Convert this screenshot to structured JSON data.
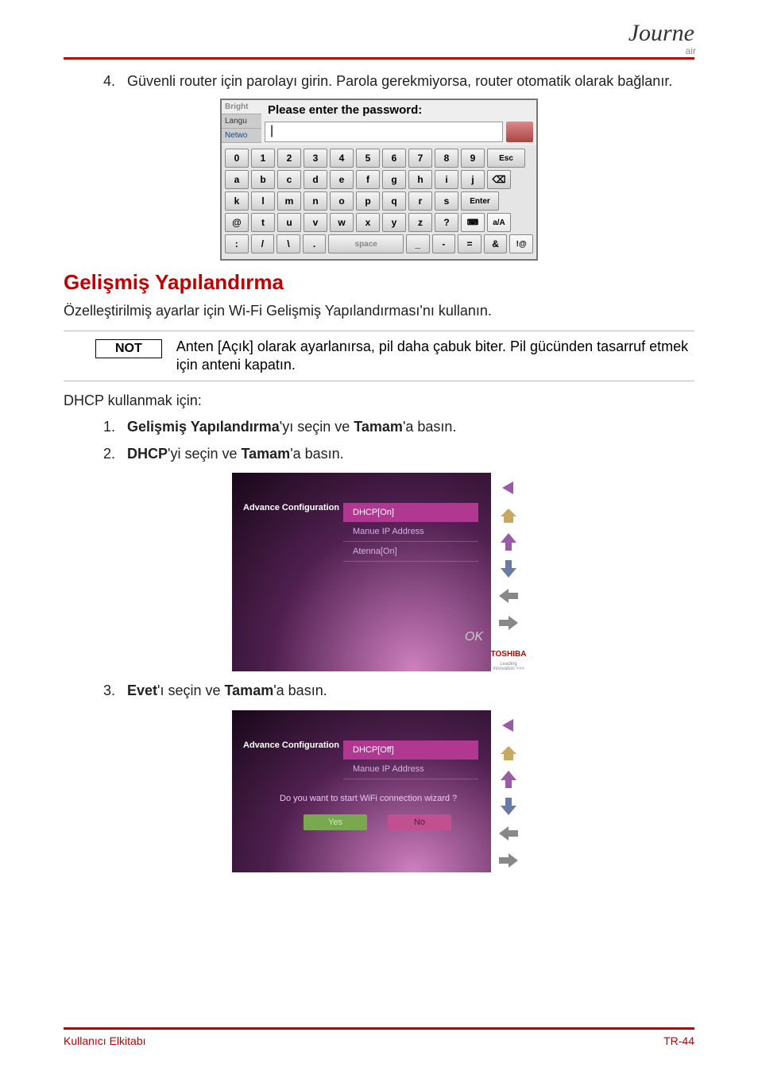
{
  "branding": {
    "logo_script": "Journe",
    "logo_sub": "air"
  },
  "step4": {
    "num": "4.",
    "text": "Güvenli router için parolayı girin. Parola gerekmiyorsa, router otomatik olarak bağlanır."
  },
  "keyboard": {
    "tabs": [
      "Bright",
      "Langu",
      "Netwo"
    ],
    "prompt": "Please enter the password:",
    "input_value": "|",
    "rows": [
      [
        "0",
        "1",
        "2",
        "3",
        "4",
        "5",
        "6",
        "7",
        "8",
        "9",
        "Esc"
      ],
      [
        "a",
        "b",
        "c",
        "d",
        "e",
        "f",
        "g",
        "h",
        "i",
        "j",
        "⌫"
      ],
      [
        "k",
        "l",
        "m",
        "n",
        "o",
        "p",
        "q",
        "r",
        "s",
        "Enter"
      ],
      [
        "@",
        "t",
        "u",
        "v",
        "w",
        "x",
        "y",
        "z",
        "?",
        "⌨",
        "a/A"
      ],
      [
        ":",
        "/",
        "\\",
        ".",
        "space",
        "_",
        "-",
        "=",
        "&",
        "!@"
      ]
    ]
  },
  "section": {
    "heading": "Gelişmiş Yapılandırma",
    "intro": "Özelleştirilmiş ayarlar için Wi-Fi Gelişmiş Yapılandırması'nı kullanın."
  },
  "note": {
    "label": "NOT",
    "text": "Anten [Açık] olarak ayarlanırsa, pil daha çabuk biter. Pil gücünden tasarruf etmek için anteni kapatın."
  },
  "dhcp_intro": "DHCP kullanmak için:",
  "steps": [
    {
      "num": "1.",
      "pre": "Gelişmiş Yapılandırma",
      "mid": "'yı seçin ve ",
      "bold2": "Tamam",
      "post": "'a basın."
    },
    {
      "num": "2.",
      "pre": "DHCP",
      "mid": "'yi seçin ve ",
      "bold2": "Tamam",
      "post": "'a basın."
    }
  ],
  "screenshot1": {
    "title": "Advance Configuration",
    "items": [
      "DHCP[On]",
      "Manue IP Address",
      "Atenna[On]"
    ],
    "selected_index": 0,
    "ok": "OK",
    "brand": "TOSHIBA",
    "brand_sub": "Leading Innovation >>>"
  },
  "step3": {
    "num": "3.",
    "pre": "Evet",
    "mid": "'ı seçin ve ",
    "bold2": "Tamam",
    "post": "'a basın."
  },
  "screenshot2": {
    "title": "Advance Configuration",
    "items": [
      "DHCP[Off]",
      "Manue IP Address"
    ],
    "selected_index": 0,
    "dialog": "Do you want to start WiFi connection wizard ?",
    "yes": "Yes",
    "no": "No"
  },
  "nav_icons": {
    "colors": {
      "up": "#9a5aa8",
      "down": "#6a7aa8",
      "left": "#888888",
      "right": "#888888",
      "home": "#c8a860",
      "back": "#9a5aa8"
    }
  },
  "footer": {
    "left": "Kullanıcı Elkitabı",
    "right": "TR-44"
  },
  "colors": {
    "accent": "#c00000",
    "purple_sel": "#b03890",
    "text": "#222222"
  }
}
